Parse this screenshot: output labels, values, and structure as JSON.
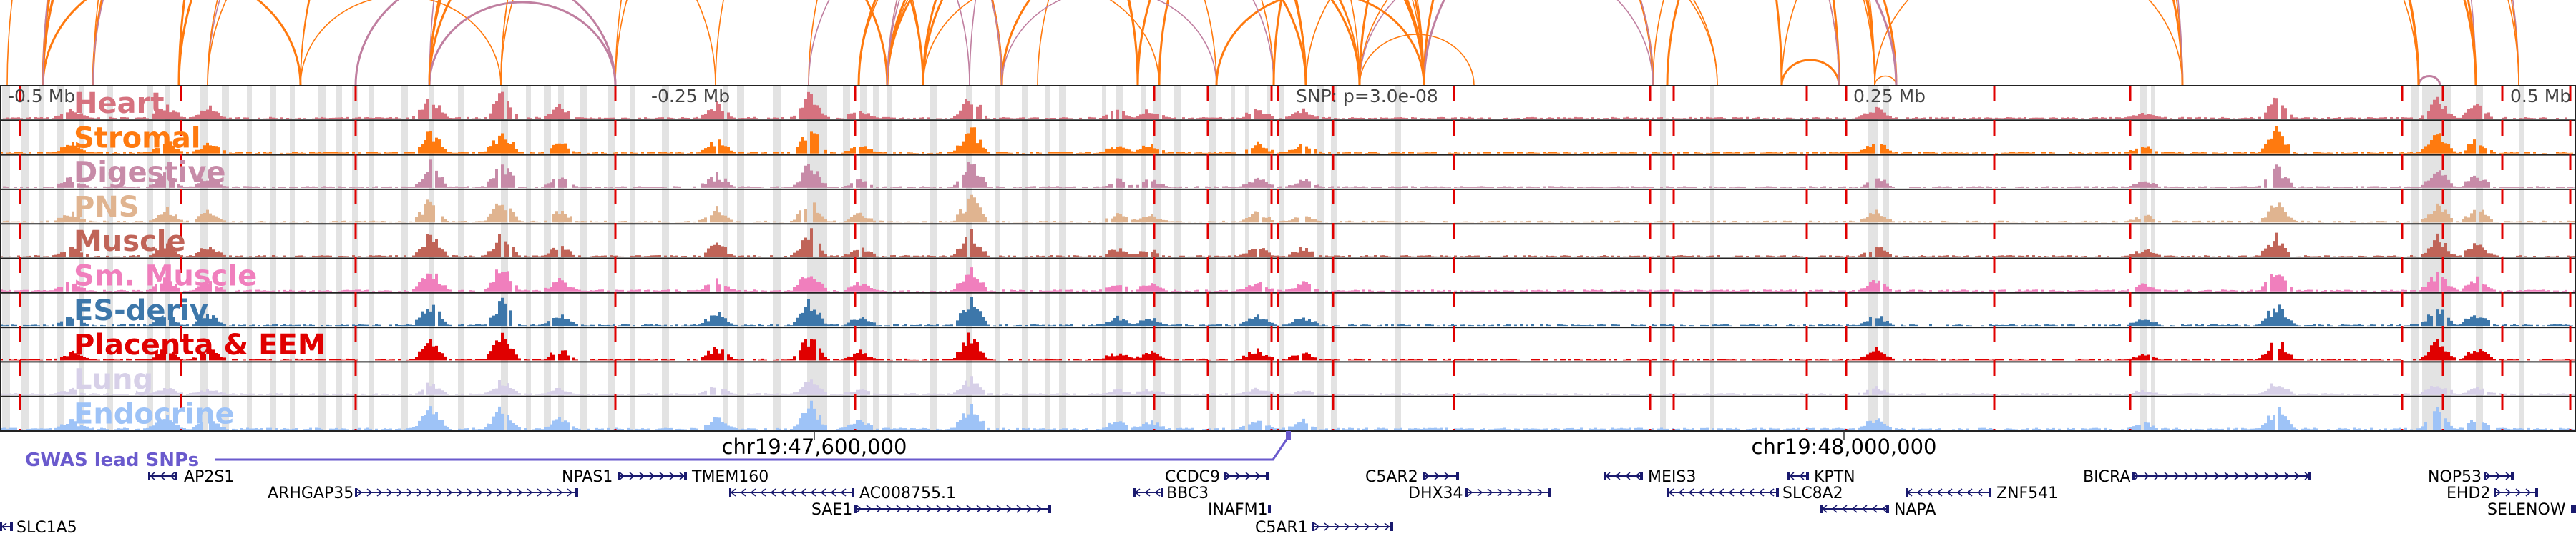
{
  "ruler": {
    "left_label": "-0.5 Mb",
    "mid_left_label": "-0.25 Mb",
    "snp_label": "SNP: p=3.0e-08",
    "mid_right_label": "0.25 Mb",
    "right_label": "0.5 Mb"
  },
  "tracks": [
    {
      "name": "Heart",
      "color": "#d6727f"
    },
    {
      "name": "Stromal",
      "color": "#ff7a0f"
    },
    {
      "name": "Digestive",
      "color": "#c78ba8"
    },
    {
      "name": "PNS",
      "color": "#e0b490"
    },
    {
      "name": "Muscle",
      "color": "#c06458"
    },
    {
      "name": "Sm. Muscle",
      "color": "#f07fbd"
    },
    {
      "name": "ES-deriv",
      "color": "#3d77aa"
    },
    {
      "name": "Placenta & EEM",
      "color": "#e00000"
    },
    {
      "name": "Lung",
      "color": "#d7d0e8"
    },
    {
      "name": "Endocrine",
      "color": "#9ec3f7"
    }
  ],
  "gwas": {
    "label": "GWAS lead SNPs",
    "color": "#6a5acd"
  },
  "coordinates": [
    "chr19:47,600,000",
    "chr19:48,000,000"
  ],
  "genes": [
    {
      "name": "AP2S1",
      "strand": "-"
    },
    {
      "name": "NPAS1",
      "strand": "+"
    },
    {
      "name": "TMEM160",
      "strand": "-"
    },
    {
      "name": "CCDC9",
      "strand": "+"
    },
    {
      "name": "C5AR2",
      "strand": "+"
    },
    {
      "name": "MEIS3",
      "strand": "-"
    },
    {
      "name": "KPTN",
      "strand": "-"
    },
    {
      "name": "BICRA",
      "strand": "+"
    },
    {
      "name": "NOP53",
      "strand": "+"
    },
    {
      "name": "ARHGAP35",
      "strand": "+"
    },
    {
      "name": "AC008755.1",
      "strand": "-"
    },
    {
      "name": "BBC3",
      "strand": "-"
    },
    {
      "name": "DHX34",
      "strand": "+"
    },
    {
      "name": "SLC8A2",
      "strand": "-"
    },
    {
      "name": "ZNF541",
      "strand": "-"
    },
    {
      "name": "EHD2",
      "strand": "+"
    },
    {
      "name": "SAE1",
      "strand": "+"
    },
    {
      "name": "INAFM1",
      "strand": "+"
    },
    {
      "name": "NAPA",
      "strand": "-"
    },
    {
      "name": "SELENOW",
      "strand": "-"
    },
    {
      "name": "SLC1A5",
      "strand": "-"
    },
    {
      "name": "C5AR1",
      "strand": "+"
    }
  ],
  "colors": {
    "gene": "#1a1a6e",
    "dashed_line": "#e00000",
    "highlight": "#e3e3e3",
    "arc_orange": "#ff7a0f",
    "arc_mauve": "#c07fa0"
  }
}
